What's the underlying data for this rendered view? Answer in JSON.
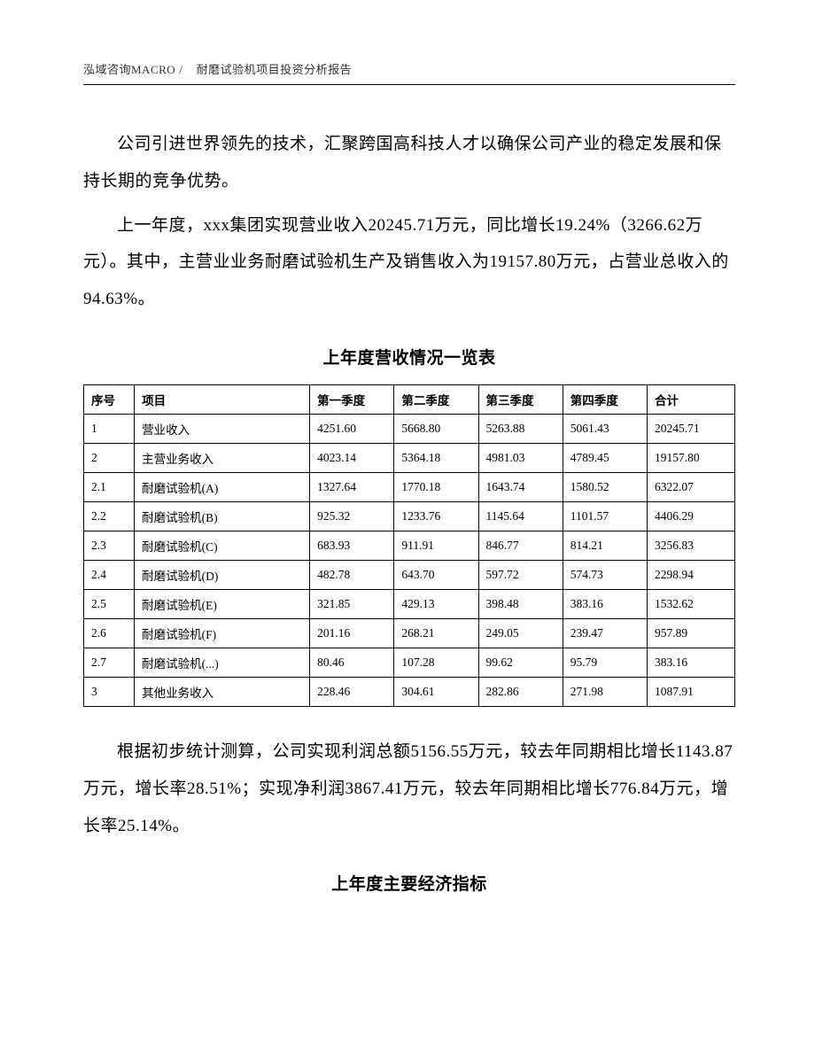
{
  "header": {
    "company": "泓域咨询MACRO",
    "separator": "/",
    "report_name": "耐磨试验机项目投资分析报告"
  },
  "paragraphs": {
    "p1": "公司引进世界领先的技术，汇聚跨国高科技人才以确保公司产业的稳定发展和保持长期的竞争优势。",
    "p2": "上一年度，xxx集团实现营业收入20245.71万元，同比增长19.24%（3266.62万元）。其中，主营业业务耐磨试验机生产及销售收入为19157.80万元，占营业总收入的94.63%。",
    "p3": "根据初步统计测算，公司实现利润总额5156.55万元，较去年同期相比增长1143.87万元，增长率28.51%；实现净利润3867.41万元，较去年同期相比增长776.84万元，增长率25.14%。"
  },
  "table1": {
    "title": "上年度营收情况一览表",
    "headers": {
      "seq": "序号",
      "item": "项目",
      "q1": "第一季度",
      "q2": "第二季度",
      "q3": "第三季度",
      "q4": "第四季度",
      "total": "合计"
    },
    "rows": [
      {
        "seq": "1",
        "item": "营业收入",
        "q1": "4251.60",
        "q2": "5668.80",
        "q3": "5263.88",
        "q4": "5061.43",
        "total": "20245.71"
      },
      {
        "seq": "2",
        "item": "主营业务收入",
        "q1": "4023.14",
        "q2": "5364.18",
        "q3": "4981.03",
        "q4": "4789.45",
        "total": "19157.80"
      },
      {
        "seq": "2.1",
        "item": "耐磨试验机(A)",
        "q1": "1327.64",
        "q2": "1770.18",
        "q3": "1643.74",
        "q4": "1580.52",
        "total": "6322.07"
      },
      {
        "seq": "2.2",
        "item": "耐磨试验机(B)",
        "q1": "925.32",
        "q2": "1233.76",
        "q3": "1145.64",
        "q4": "1101.57",
        "total": "4406.29"
      },
      {
        "seq": "2.3",
        "item": "耐磨试验机(C)",
        "q1": "683.93",
        "q2": "911.91",
        "q3": "846.77",
        "q4": "814.21",
        "total": "3256.83"
      },
      {
        "seq": "2.4",
        "item": "耐磨试验机(D)",
        "q1": "482.78",
        "q2": "643.70",
        "q3": "597.72",
        "q4": "574.73",
        "total": "2298.94"
      },
      {
        "seq": "2.5",
        "item": "耐磨试验机(E)",
        "q1": "321.85",
        "q2": "429.13",
        "q3": "398.48",
        "q4": "383.16",
        "total": "1532.62"
      },
      {
        "seq": "2.6",
        "item": "耐磨试验机(F)",
        "q1": "201.16",
        "q2": "268.21",
        "q3": "249.05",
        "q4": "239.47",
        "total": "957.89"
      },
      {
        "seq": "2.7",
        "item": "耐磨试验机(...)",
        "q1": "80.46",
        "q2": "107.28",
        "q3": "99.62",
        "q4": "95.79",
        "total": "383.16"
      },
      {
        "seq": "3",
        "item": "其他业务收入",
        "q1": "228.46",
        "q2": "304.61",
        "q3": "282.86",
        "q4": "271.98",
        "total": "1087.91"
      }
    ]
  },
  "section2_title": "上年度主要经济指标"
}
